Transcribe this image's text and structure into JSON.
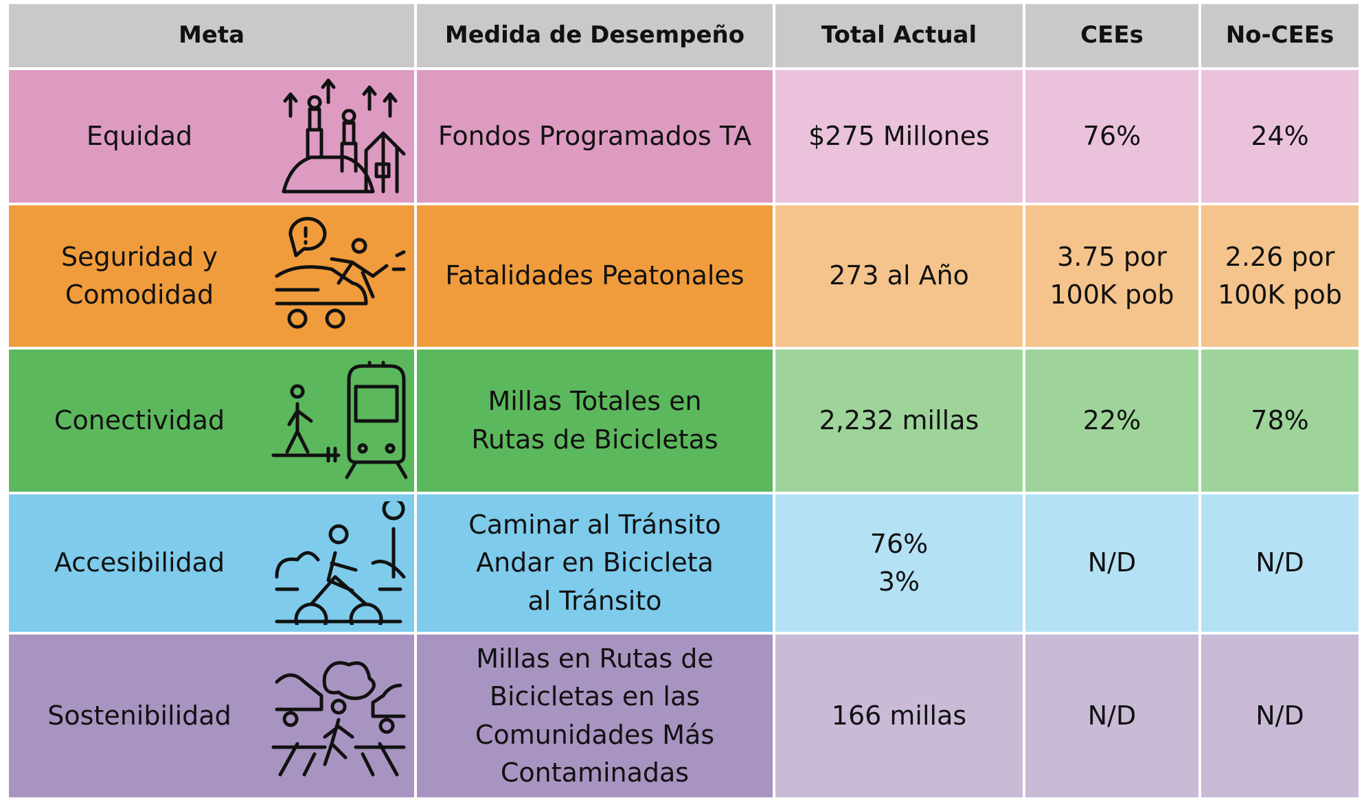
{
  "table": {
    "header": [
      "Meta",
      "Medida de Desempeño",
      "Total Actual",
      "CEEs",
      "No-CEEs"
    ],
    "rows": [
      {
        "goal": "Equidad",
        "measure": "Fondos Programados TA",
        "total": "$275 Millones",
        "cees": "76%",
        "nocees": "24%"
      },
      {
        "goal": "Seguridad y\nComodidad",
        "measure": "Fatalidades Peatonales",
        "total": "273 al Año",
        "cees": "3.75 por\n100K pob",
        "nocees": "2.26 por\n100K pob"
      },
      {
        "goal": "Conectividad",
        "measure": "Millas Totales en\nRutas de Bicicletas",
        "total": "2,232 millas",
        "cees": "22%",
        "nocees": "78%"
      },
      {
        "goal": "Accesibilidad",
        "measure": "Caminar al Tránsito\nAndar en Bicicleta\nal Tránsito",
        "total": "76%\n3%",
        "cees": "N/D",
        "nocees": "N/D"
      },
      {
        "goal": "Sostenibilidad",
        "measure": "Millas en Rutas de\nBicicletas en las\nComunidades Más\nContaminadas",
        "total": "166 millas",
        "cees": "N/D",
        "nocees": "N/D"
      }
    ]
  }
}
